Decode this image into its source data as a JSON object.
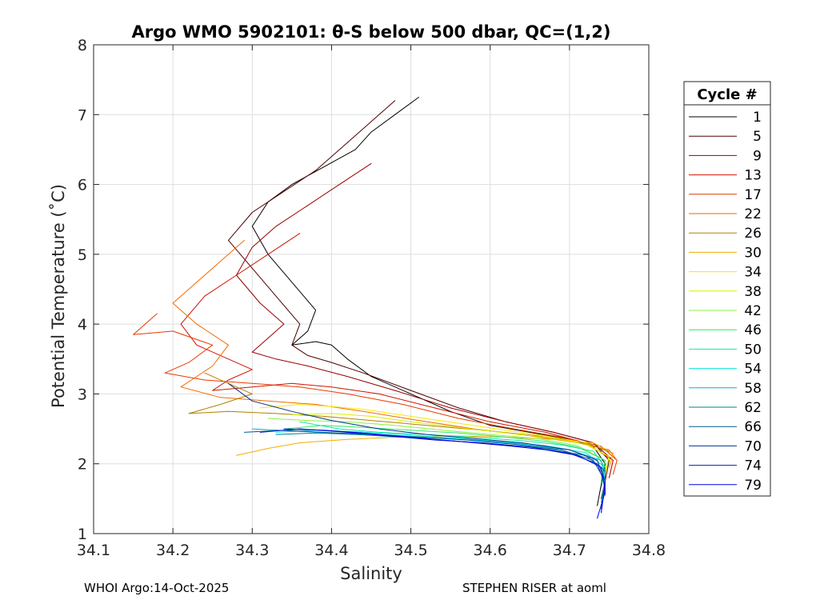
{
  "chart_data": {
    "type": "line",
    "title": "Argo WMO 5902101: θ-S below 500 dbar,  QC=(1,2)",
    "xlabel": "Salinity",
    "ylabel": "Potential Temperature (˚C)",
    "xlim": [
      34.1,
      34.8
    ],
    "ylim": [
      1,
      8
    ],
    "xticks": [
      "34.1",
      "34.2",
      "34.3",
      "34.4",
      "34.5",
      "34.6",
      "34.7",
      "34.8"
    ],
    "yticks": [
      "1",
      "2",
      "3",
      "4",
      "5",
      "6",
      "7",
      "8"
    ],
    "grid": true,
    "legend": {
      "title": "Cycle #",
      "placement": "right",
      "entries": [
        {
          "label": "1",
          "color": "#000000"
        },
        {
          "label": "5",
          "color": "#4d0000"
        },
        {
          "label": "9",
          "color": "#990000"
        },
        {
          "label": "13",
          "color": "#cc1400"
        },
        {
          "label": "17",
          "color": "#e63a00"
        },
        {
          "label": "22",
          "color": "#f26a00"
        },
        {
          "label": "26",
          "color": "#b08000"
        },
        {
          "label": "30",
          "color": "#f0b000"
        },
        {
          "label": "34",
          "color": "#ffe600"
        },
        {
          "label": "38",
          "color": "#d6f000"
        },
        {
          "label": "42",
          "color": "#8cf040"
        },
        {
          "label": "46",
          "color": "#33e666"
        },
        {
          "label": "50",
          "color": "#14e6a6"
        },
        {
          "label": "54",
          "color": "#00e6d9"
        },
        {
          "label": "58",
          "color": "#00b3cc"
        },
        {
          "label": "62",
          "color": "#008099"
        },
        {
          "label": "66",
          "color": "#005c8c"
        },
        {
          "label": "70",
          "color": "#003399"
        },
        {
          "label": "74",
          "color": "#0019cc"
        },
        {
          "label": "79",
          "color": "#0000e6"
        }
      ]
    },
    "series": [
      {
        "name": "1",
        "color": "#000000",
        "x": [
          34.51,
          34.48,
          34.45,
          34.43,
          34.39,
          34.35,
          34.32,
          34.3,
          34.32,
          34.35,
          34.38,
          34.37,
          34.35,
          34.38,
          34.4,
          34.42,
          34.45,
          34.5,
          34.55,
          34.6,
          34.65,
          34.7,
          34.73,
          34.745,
          34.74,
          34.735
        ],
        "y": [
          7.25,
          7.0,
          6.75,
          6.5,
          6.25,
          6.0,
          5.75,
          5.4,
          5.0,
          4.6,
          4.2,
          3.9,
          3.7,
          3.75,
          3.7,
          3.5,
          3.25,
          3.0,
          2.75,
          2.55,
          2.45,
          2.35,
          2.25,
          2.0,
          1.7,
          1.4
        ]
      },
      {
        "name": "5",
        "color": "#4d0000",
        "x": [
          34.48,
          34.45,
          34.42,
          34.38,
          34.34,
          34.3,
          34.27,
          34.3,
          34.33,
          34.36,
          34.35,
          34.37,
          34.4,
          34.44,
          34.5,
          34.56,
          34.62,
          34.68,
          34.73,
          34.75,
          34.745,
          34.74
        ],
        "y": [
          7.2,
          6.9,
          6.6,
          6.2,
          5.9,
          5.6,
          5.2,
          4.8,
          4.4,
          4.0,
          3.7,
          3.55,
          3.45,
          3.3,
          3.05,
          2.8,
          2.6,
          2.45,
          2.3,
          2.05,
          1.75,
          1.5
        ]
      },
      {
        "name": "9",
        "color": "#990000",
        "x": [
          34.45,
          34.41,
          34.37,
          34.33,
          34.3,
          34.28,
          34.31,
          34.34,
          34.32,
          34.3,
          34.33,
          34.37,
          34.42,
          34.48,
          34.55,
          34.62,
          34.68,
          34.73,
          34.755,
          34.75
        ],
        "y": [
          6.3,
          6.0,
          5.7,
          5.4,
          5.1,
          4.7,
          4.3,
          4.0,
          3.8,
          3.6,
          3.5,
          3.4,
          3.25,
          3.05,
          2.8,
          2.6,
          2.45,
          2.3,
          2.05,
          1.8
        ]
      },
      {
        "name": "13",
        "color": "#cc1400",
        "x": [
          34.36,
          34.32,
          34.28,
          34.24,
          34.21,
          34.23,
          34.27,
          34.3,
          34.27,
          34.25,
          34.3,
          34.35,
          34.4,
          34.46,
          34.53,
          34.6,
          34.67,
          34.72,
          34.755,
          34.75
        ],
        "y": [
          5.3,
          5.0,
          4.7,
          4.4,
          4.0,
          3.7,
          3.5,
          3.35,
          3.2,
          3.05,
          3.1,
          3.15,
          3.1,
          3.0,
          2.8,
          2.6,
          2.45,
          2.3,
          2.05,
          1.8
        ]
      },
      {
        "name": "17",
        "color": "#e63a00",
        "x": [
          34.18,
          34.15,
          34.2,
          34.25,
          34.22,
          34.19,
          34.24,
          34.3,
          34.36,
          34.42,
          34.49,
          34.56,
          34.63,
          34.69,
          34.74,
          34.76,
          34.755
        ],
        "y": [
          4.15,
          3.85,
          3.9,
          3.7,
          3.45,
          3.3,
          3.2,
          3.15,
          3.1,
          3.0,
          2.85,
          2.65,
          2.5,
          2.38,
          2.25,
          2.05,
          1.85
        ]
      },
      {
        "name": "22",
        "color": "#f26a00",
        "x": [
          34.29,
          34.26,
          34.23,
          34.2,
          34.23,
          34.27,
          34.25,
          34.21,
          34.26,
          34.32,
          34.38,
          34.44,
          34.51,
          34.58,
          34.65,
          34.71,
          34.75,
          34.76
        ],
        "y": [
          5.2,
          4.9,
          4.6,
          4.3,
          4.0,
          3.7,
          3.4,
          3.1,
          2.95,
          2.9,
          2.85,
          2.75,
          2.62,
          2.5,
          2.4,
          2.3,
          2.2,
          2.05
        ]
      },
      {
        "name": "26",
        "color": "#b08000",
        "x": [
          34.24,
          34.27,
          34.3,
          34.26,
          34.22,
          34.27,
          34.33,
          34.39,
          34.45,
          34.52,
          34.59,
          34.66,
          34.72,
          34.755,
          34.75
        ],
        "y": [
          3.3,
          3.15,
          3.0,
          2.85,
          2.72,
          2.75,
          2.72,
          2.68,
          2.62,
          2.55,
          2.48,
          2.4,
          2.3,
          2.15,
          1.95
        ]
      },
      {
        "name": "30",
        "color": "#f0b000",
        "x": [
          34.28,
          34.32,
          34.36,
          34.42,
          34.48,
          34.55,
          34.62,
          34.68,
          34.73,
          34.755,
          34.75
        ],
        "y": [
          2.12,
          2.22,
          2.3,
          2.35,
          2.38,
          2.4,
          2.38,
          2.35,
          2.3,
          2.15,
          1.95
        ]
      },
      {
        "name": "34",
        "color": "#ffe600",
        "x": [
          34.31,
          34.36,
          34.4,
          34.44,
          34.5,
          34.56,
          34.62,
          34.67,
          34.72,
          34.75,
          34.745
        ],
        "y": [
          2.8,
          2.85,
          2.82,
          2.78,
          2.68,
          2.58,
          2.48,
          2.4,
          2.3,
          2.1,
          1.9
        ]
      },
      {
        "name": "38",
        "color": "#d6f000",
        "x": [
          34.35,
          34.4,
          34.45,
          34.5,
          34.56,
          34.62,
          34.67,
          34.72,
          34.75,
          34.745
        ],
        "y": [
          2.7,
          2.72,
          2.68,
          2.6,
          2.52,
          2.44,
          2.38,
          2.28,
          2.1,
          1.85
        ]
      },
      {
        "name": "42",
        "color": "#8cf040",
        "x": [
          34.32,
          34.37,
          34.42,
          34.48,
          34.54,
          34.6,
          34.66,
          34.71,
          34.745,
          34.74
        ],
        "y": [
          2.65,
          2.62,
          2.6,
          2.55,
          2.48,
          2.42,
          2.36,
          2.26,
          2.05,
          1.8
        ]
      },
      {
        "name": "46",
        "color": "#33e666",
        "x": [
          34.34,
          34.39,
          34.44,
          34.5,
          34.56,
          34.62,
          34.67,
          34.71,
          34.745,
          34.74
        ],
        "y": [
          2.5,
          2.55,
          2.52,
          2.48,
          2.44,
          2.38,
          2.32,
          2.24,
          2.05,
          1.75
        ]
      },
      {
        "name": "50",
        "color": "#14e6a6",
        "x": [
          34.36,
          34.41,
          34.46,
          34.52,
          34.58,
          34.64,
          34.69,
          34.73,
          34.745,
          34.74
        ],
        "y": [
          2.6,
          2.5,
          2.45,
          2.42,
          2.38,
          2.33,
          2.27,
          2.18,
          1.95,
          1.65
        ]
      },
      {
        "name": "54",
        "color": "#00e6d9",
        "x": [
          34.33,
          34.38,
          34.43,
          34.49,
          34.55,
          34.61,
          34.67,
          34.72,
          34.745,
          34.745
        ],
        "y": [
          2.45,
          2.48,
          2.46,
          2.42,
          2.37,
          2.32,
          2.26,
          2.16,
          1.95,
          1.6
        ]
      },
      {
        "name": "58",
        "color": "#00b3cc",
        "x": [
          34.3,
          34.35,
          34.4,
          34.46,
          34.52,
          34.58,
          34.64,
          34.7,
          34.74,
          34.745,
          34.74
        ],
        "y": [
          2.5,
          2.47,
          2.44,
          2.42,
          2.38,
          2.34,
          2.28,
          2.2,
          2.05,
          1.75,
          1.45
        ]
      },
      {
        "name": "62",
        "color": "#008099",
        "x": [
          34.33,
          34.38,
          34.43,
          34.49,
          34.55,
          34.61,
          34.67,
          34.72,
          34.745,
          34.745
        ],
        "y": [
          2.42,
          2.44,
          2.42,
          2.38,
          2.33,
          2.28,
          2.22,
          2.12,
          1.9,
          1.55
        ]
      },
      {
        "name": "66",
        "color": "#005c8c",
        "x": [
          34.29,
          34.34,
          34.39,
          34.45,
          34.51,
          34.57,
          34.63,
          34.69,
          34.73,
          34.745,
          34.74
        ],
        "y": [
          2.45,
          2.48,
          2.45,
          2.42,
          2.38,
          2.34,
          2.28,
          2.2,
          2.05,
          1.75,
          1.35
        ]
      },
      {
        "name": "70",
        "color": "#003399",
        "x": [
          34.27,
          34.3,
          34.35,
          34.4,
          34.46,
          34.52,
          34.58,
          34.64,
          34.7,
          34.735,
          34.745,
          34.74
        ],
        "y": [
          3.15,
          2.9,
          2.75,
          2.62,
          2.5,
          2.42,
          2.36,
          2.3,
          2.2,
          2.05,
          1.75,
          1.3
        ]
      },
      {
        "name": "74",
        "color": "#0019cc",
        "x": [
          34.31,
          34.36,
          34.41,
          34.47,
          34.53,
          34.59,
          34.65,
          34.7,
          34.735,
          34.745,
          34.74
        ],
        "y": [
          2.45,
          2.5,
          2.46,
          2.4,
          2.34,
          2.3,
          2.24,
          2.15,
          2.0,
          1.7,
          1.3
        ]
      },
      {
        "name": "79",
        "color": "#0000e6",
        "x": [
          34.34,
          34.39,
          34.44,
          34.5,
          34.56,
          34.62,
          34.67,
          34.71,
          34.74,
          34.745,
          34.735
        ],
        "y": [
          2.5,
          2.48,
          2.44,
          2.38,
          2.32,
          2.26,
          2.2,
          2.12,
          1.95,
          1.6,
          1.22
        ]
      }
    ]
  },
  "footer": {
    "left": "WHOI Argo:14-Oct-2025",
    "right": "STEPHEN RISER at aoml"
  }
}
